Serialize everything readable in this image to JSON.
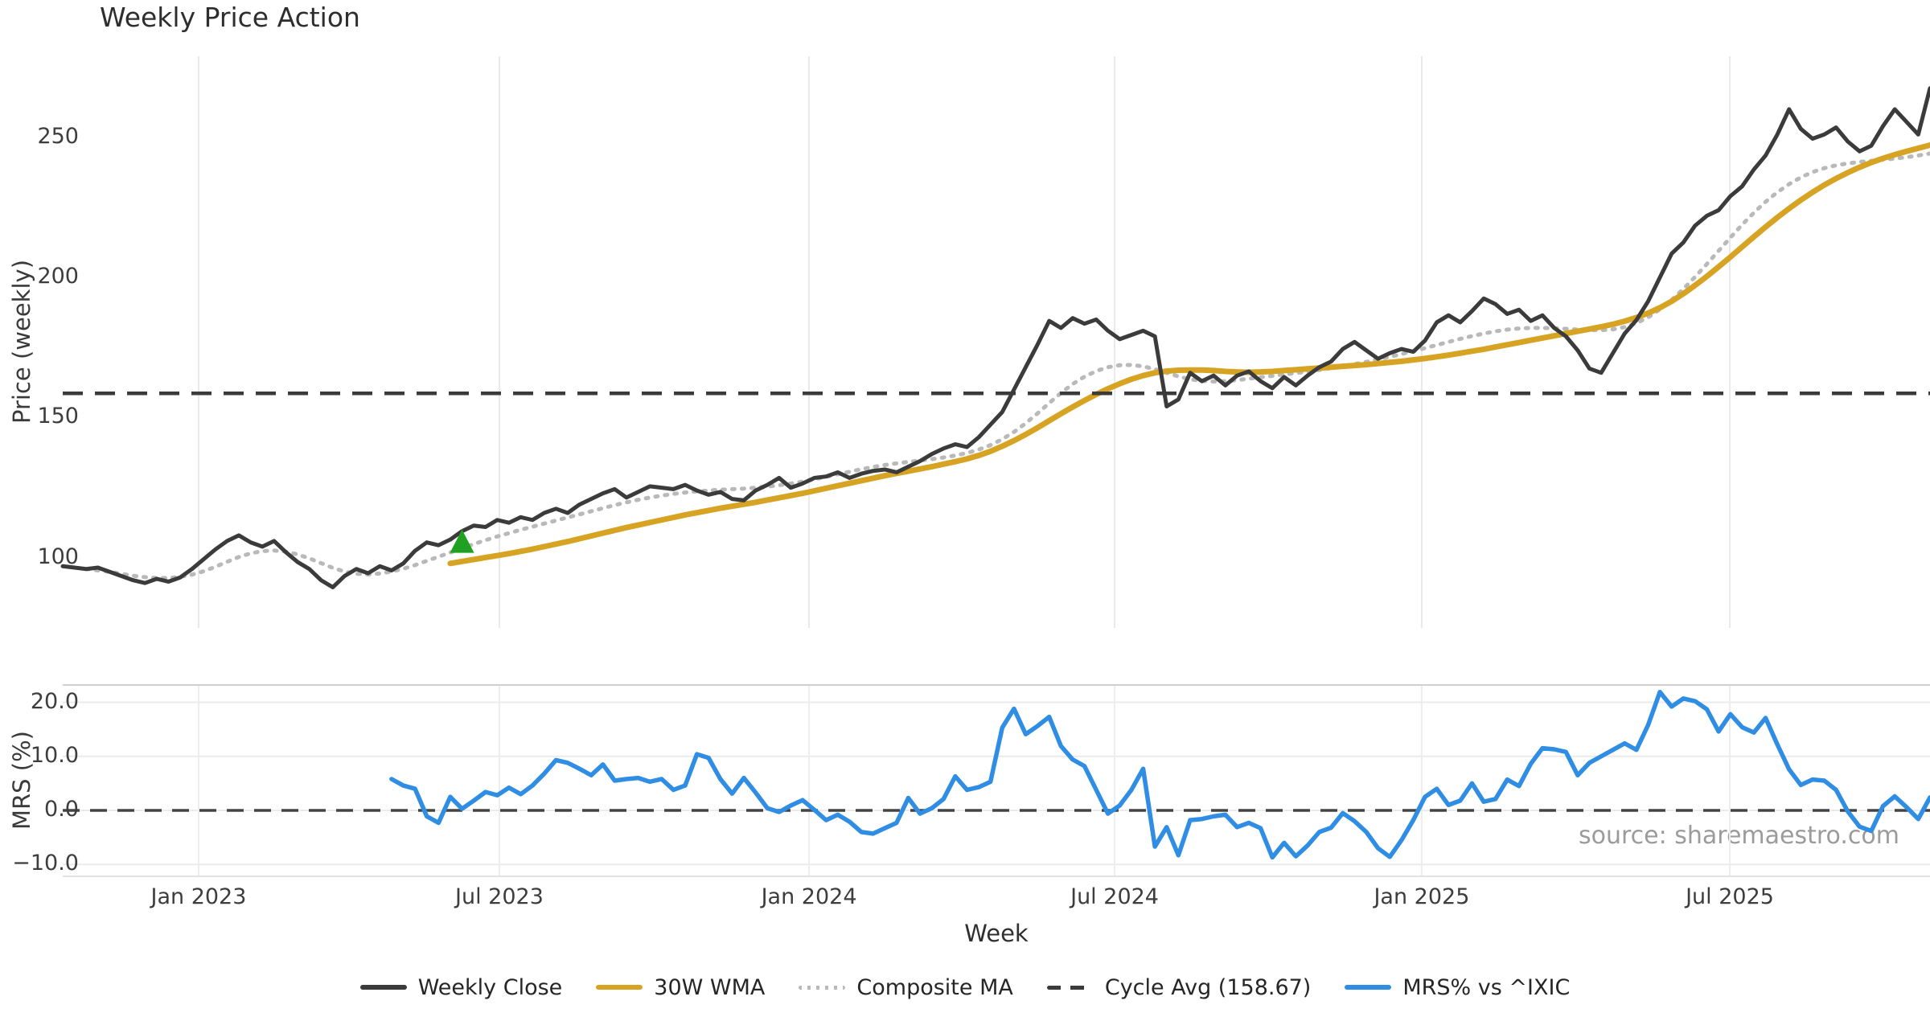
{
  "title": "Weekly Price Action",
  "source_note": "source: sharemaestro.com",
  "x_axis": {
    "label": "Week",
    "ticks": [
      {
        "label": "Jan 2023",
        "week": 11.57
      },
      {
        "label": "Jul 2023",
        "week": 37.18
      },
      {
        "label": "Jan 2024",
        "week": 63.55
      },
      {
        "label": "Jul 2024",
        "week": 89.57
      },
      {
        "label": "Jan 2025",
        "week": 115.72
      },
      {
        "label": "Jul 2025",
        "week": 141.95
      }
    ]
  },
  "legend": [
    {
      "label": "Weekly Close",
      "color": "#3b3b3b",
      "style": "solid"
    },
    {
      "label": "30W WMA",
      "color": "#d7a322",
      "style": "solid"
    },
    {
      "label": "Composite MA",
      "color": "#b9b9b9",
      "style": "dotted"
    },
    {
      "label": "Cycle Avg (158.67)",
      "color": "#3b3b3b",
      "style": "dashed"
    },
    {
      "label": "MRS% vs ^IXIC",
      "color": "#2f8de4",
      "style": "solid"
    }
  ],
  "chart_data": [
    {
      "type": "line",
      "id": "price",
      "ylabel": "Price (weekly)",
      "ylim": [
        75,
        278.9
      ],
      "yticks": [
        100,
        150,
        200,
        250
      ],
      "grid": "vertical-only",
      "ref_line": {
        "name": "Cycle Avg",
        "value": 158.67,
        "color": "#3b3b3b",
        "dash": "25 15",
        "width": 4.5
      },
      "marker": {
        "name": "buy-signal-triangle",
        "week": 34,
        "value": 105.5,
        "color": "#21a121"
      },
      "series": [
        {
          "name": "Weekly Close",
          "color": "#3b3b3b",
          "width": 5,
          "start": 0,
          "values": [
            97,
            96.5,
            96,
            96.5,
            95,
            93.5,
            92,
            91,
            92.5,
            91.5,
            93,
            96,
            99.5,
            103,
            106,
            108,
            105.5,
            104,
            106,
            102,
            98.5,
            96,
            92,
            89.5,
            93.5,
            96,
            94.5,
            97,
            95.5,
            98,
            102.5,
            105.5,
            104.5,
            106.5,
            109.5,
            111.5,
            111,
            113.5,
            112.5,
            114.5,
            113.5,
            116,
            117.5,
            116,
            119,
            121,
            123,
            124.5,
            121.5,
            123.5,
            125.5,
            125,
            124.5,
            126,
            124,
            122.5,
            123.5,
            121,
            120.5,
            124,
            126,
            128.5,
            125,
            126.5,
            128.5,
            129,
            130.5,
            128.5,
            130,
            131,
            131.5,
            130.5,
            132.5,
            134.5,
            137,
            139,
            140.5,
            139.5,
            143,
            147.5,
            152,
            160,
            168,
            176,
            184.5,
            182,
            185.5,
            183.5,
            185,
            181,
            178,
            179.5,
            181,
            179,
            154,
            156.5,
            166,
            163,
            165,
            161.5,
            165,
            166.5,
            163,
            160.5,
            164.5,
            161.5,
            165,
            168,
            170,
            174.5,
            177,
            174,
            171,
            173,
            174.5,
            173.5,
            177.5,
            184,
            186.5,
            184,
            188,
            192.5,
            190.5,
            187,
            188.5,
            184.5,
            186.5,
            182,
            179,
            174,
            167.5,
            166,
            173,
            180,
            184.8,
            191.5,
            200,
            208.5,
            212.5,
            218.5,
            222,
            224,
            229,
            232.5,
            238.5,
            243.5,
            251,
            260,
            253,
            249.5,
            251,
            253.5,
            248.5,
            245,
            247,
            254,
            260,
            255.5,
            251,
            267.5
          ]
        },
        {
          "name": "30W WMA",
          "color": "#d7a322",
          "width": 7,
          "start": 33,
          "values": [
            98,
            98.7,
            99.4,
            100.1,
            100.8,
            101.5,
            102.3,
            103.1,
            104,
            104.9,
            105.8,
            106.8,
            107.8,
            108.8,
            109.8,
            110.8,
            111.7,
            112.6,
            113.5,
            114.4,
            115.3,
            116.1,
            116.9,
            117.7,
            118.4,
            119.1,
            119.8,
            120.6,
            121.4,
            122.2,
            123,
            123.9,
            124.8,
            125.7,
            126.6,
            127.5,
            128.4,
            129.3,
            130.1,
            130.9,
            131.7,
            132.5,
            133.4,
            134.3,
            135.3,
            136.5,
            138,
            139.8,
            141.8,
            144,
            146.4,
            148.9,
            151.4,
            153.8,
            156.1,
            158.3,
            160.3,
            162.1,
            163.7,
            165,
            166,
            166.6,
            166.9,
            167,
            167,
            166.8,
            166.5,
            166.3,
            166.2,
            166.3,
            166.5,
            166.8,
            167.1,
            167.4,
            167.7,
            168,
            168.3,
            168.6,
            168.9,
            169.3,
            169.7,
            170.1,
            170.6,
            171.1,
            171.7,
            172.3,
            173,
            173.7,
            174.4,
            175.2,
            176,
            176.8,
            177.6,
            178.4,
            179.2,
            180,
            180.8,
            181.6,
            182.4,
            183.3,
            184.4,
            185.7,
            187.3,
            189.2,
            191.5,
            194.2,
            197.2,
            200.4,
            203.8,
            207.3,
            210.9,
            214.5,
            218,
            221.4,
            224.6,
            227.6,
            230.4,
            233,
            235.3,
            237.4,
            239.3,
            241,
            242.5,
            243.8,
            245,
            246.1,
            247.2
          ]
        },
        {
          "name": "Composite MA",
          "color": "#b9b9b9",
          "width": 5,
          "dash": "3 9",
          "start": 2,
          "values": [
            96,
            95.5,
            95,
            94.3,
            93.6,
            93.1,
            92.8,
            92.8,
            93.2,
            94,
            95.2,
            96.8,
            98.6,
            100.3,
            101.6,
            102.4,
            102.6,
            102.2,
            101.2,
            99.8,
            98.1,
            96.4,
            95.1,
            94.3,
            94.1,
            94.4,
            95.1,
            96.1,
            97.4,
            98.9,
            100.4,
            101.9,
            103.4,
            104.9,
            106.3,
            107.6,
            108.8,
            110,
            111.1,
            112.2,
            113.3,
            114.4,
            115.5,
            116.6,
            117.7,
            118.8,
            119.8,
            120.7,
            121.5,
            122.2,
            122.8,
            123.3,
            123.7,
            124,
            124.3,
            124.5,
            124.7,
            125,
            125.4,
            125.9,
            126.5,
            127.2,
            128,
            128.9,
            129.8,
            130.7,
            131.6,
            132.4,
            133.1,
            133.7,
            134.2,
            134.7,
            135.2,
            135.8,
            136.5,
            137.4,
            138.6,
            140.2,
            142.3,
            144.9,
            148,
            151.5,
            155.2,
            158.8,
            162,
            164.6,
            166.6,
            168,
            168.7,
            168.8,
            168.3,
            167.3,
            166,
            164.7,
            163.7,
            163.1,
            162.9,
            163,
            163.4,
            163.9,
            164.4,
            164.9,
            165.4,
            165.9,
            166.4,
            167,
            167.7,
            168.4,
            169.1,
            169.9,
            170.8,
            171.7,
            172.7,
            173.7,
            174.8,
            175.9,
            177,
            178.1,
            179.1,
            180,
            180.8,
            181.4,
            181.8,
            182,
            182,
            181.9,
            181.7,
            181.4,
            181.2,
            181.2,
            181.5,
            182.3,
            183.7,
            185.8,
            188.6,
            192,
            195.9,
            200.2,
            204.8,
            209.5,
            214.2,
            218.8,
            223.1,
            227,
            230.4,
            233.3,
            235.7,
            237.6,
            239,
            240,
            240.7,
            241.2,
            241.6,
            242,
            242.4,
            242.9,
            243.5,
            244.2
          ]
        }
      ]
    },
    {
      "type": "line",
      "id": "mrs",
      "ylabel": "MRS (%)",
      "ylim": [
        -12.2,
        23.2
      ],
      "yticks": [
        -10,
        0,
        10,
        20
      ],
      "grid": "horizontal-and-vertical",
      "ref_line": {
        "name": "Zero line",
        "value": 0,
        "color": "#444444",
        "dash": "21 13",
        "width": 3.5
      },
      "series": [
        {
          "name": "MRS% vs ^IXIC",
          "color": "#2f8de4",
          "width": 5.5,
          "start": 28,
          "values": [
            5.8,
            4.6,
            4.0,
            -1.1,
            -2.3,
            2.5,
            0.3,
            1.8,
            3.4,
            2.8,
            4.2,
            3.0,
            4.6,
            6.8,
            9.3,
            8.8,
            7.7,
            6.5,
            8.5,
            5.5,
            5.8,
            6.0,
            5.3,
            5.8,
            3.8,
            4.6,
            10.4,
            9.7,
            5.8,
            3.1,
            6.0,
            3.3,
            0.4,
            -0.3,
            0.9,
            1.9,
            0.1,
            -1.8,
            -0.8,
            -2.1,
            -4.0,
            -4.3,
            -3.3,
            -2.3,
            2.3,
            -0.6,
            0.4,
            2.1,
            6.3,
            3.8,
            4.3,
            5.3,
            15.3,
            18.8,
            14.1,
            15.6,
            17.3,
            11.9,
            9.4,
            8.2,
            3.8,
            -0.6,
            0.9,
            3.8,
            7.7,
            -6.7,
            -3.1,
            -8.3,
            -1.8,
            -1.6,
            -1.1,
            -0.8,
            -3.1,
            -2.3,
            -3.3,
            -8.7,
            -6.0,
            -8.5,
            -6.5,
            -4.0,
            -3.2,
            -0.5,
            -2.0,
            -4.0,
            -7.0,
            -8.6,
            -5.5,
            -1.8,
            2.5,
            4.0,
            1.0,
            1.8,
            5.0,
            1.6,
            2.1,
            5.7,
            4.5,
            8.6,
            11.5,
            11.3,
            10.8,
            6.5,
            8.8,
            10.0,
            11.2,
            12.4,
            11.2,
            15.8,
            21.9,
            19.2,
            20.7,
            20.2,
            18.7,
            14.6,
            17.8,
            15.4,
            14.4,
            17.1,
            12.2,
            7.6,
            4.7,
            5.7,
            5.5,
            3.8,
            -0.2,
            -3.0,
            -3.8,
            0.8,
            2.6,
            0.6,
            -1.6,
            2.4
          ]
        }
      ]
    }
  ]
}
